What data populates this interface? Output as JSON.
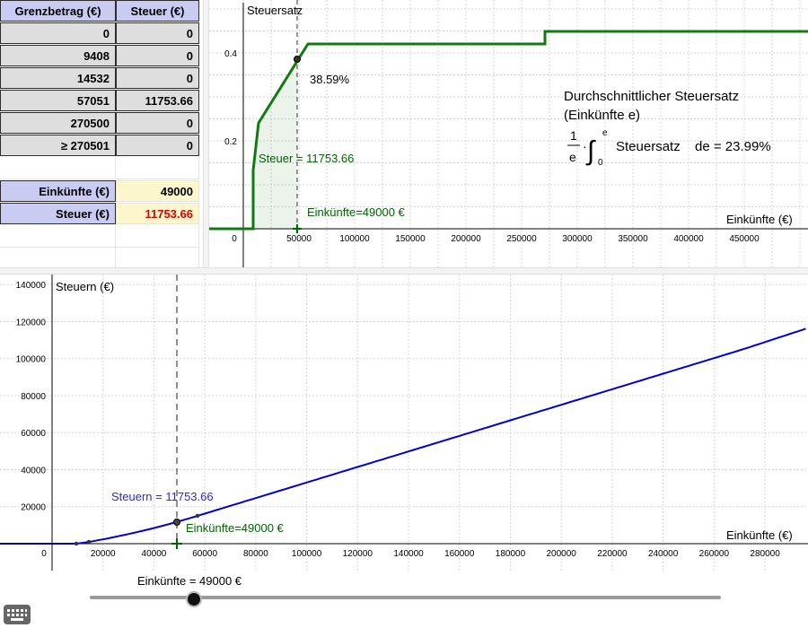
{
  "spreadsheet": {
    "header": {
      "col1": "Grenzbetrag (€)",
      "col2": "Steuer (€)"
    },
    "rows": [
      {
        "grenz": "0",
        "steuer": "0"
      },
      {
        "grenz": "9408",
        "steuer": "0"
      },
      {
        "grenz": "14532",
        "steuer": "0"
      },
      {
        "grenz": "57051",
        "steuer": "11753.66"
      },
      {
        "grenz": "270500",
        "steuer": "0"
      },
      {
        "grenz": "≥ 270501",
        "steuer": "0"
      }
    ],
    "einkuenfte_label": "Einkünfte (€)",
    "einkuenfte_value": "49000",
    "steuer_label": "Steuer (€)",
    "steuer_value": "11753.66"
  },
  "top_graph": {
    "y_axis_label": "Steuersatz",
    "x_axis_label": "Einkünfte (€)",
    "x_ticks": [
      "0",
      "50000",
      "100000",
      "150000",
      "200000",
      "250000",
      "300000",
      "350000",
      "400000",
      "450000"
    ],
    "y_ticks": [
      "0.2",
      "0.4"
    ],
    "rate_label": "38.59%",
    "steuer_label": "Steuer = 11753.66",
    "einkuenfte_label": "Einkünfte=49000 €",
    "avg_title_line1": "Durchschnittlicher Steuersatz",
    "avg_title_line2": "(Einkünfte e)",
    "avg_formula_frac_num": "1",
    "avg_formula_frac_den": "e",
    "avg_formula_int_upper": "e",
    "avg_formula_int_lower": "0",
    "avg_formula_text": "Steuersatz",
    "avg_formula_result": "de = 23.99%",
    "curve_color": "#006400"
  },
  "bottom_graph": {
    "y_axis_label": "Steuern (€)",
    "x_axis_label": "Einkünfte (€)",
    "x_ticks": [
      "0",
      "20000",
      "40000",
      "60000",
      "80000",
      "100000",
      "120000",
      "140000",
      "160000",
      "180000",
      "200000",
      "220000",
      "240000",
      "260000",
      "280000"
    ],
    "y_ticks": [
      "20000",
      "40000",
      "60000",
      "80000",
      "100000",
      "120000",
      "140000"
    ],
    "steuern_label": "Steuern = 11753.66",
    "einkuenfte_label": "Einkünfte=49000 €",
    "curve_color": "#0000d0"
  },
  "slider": {
    "label": "Einkünfte = 49000 €",
    "value": 49000
  }
}
